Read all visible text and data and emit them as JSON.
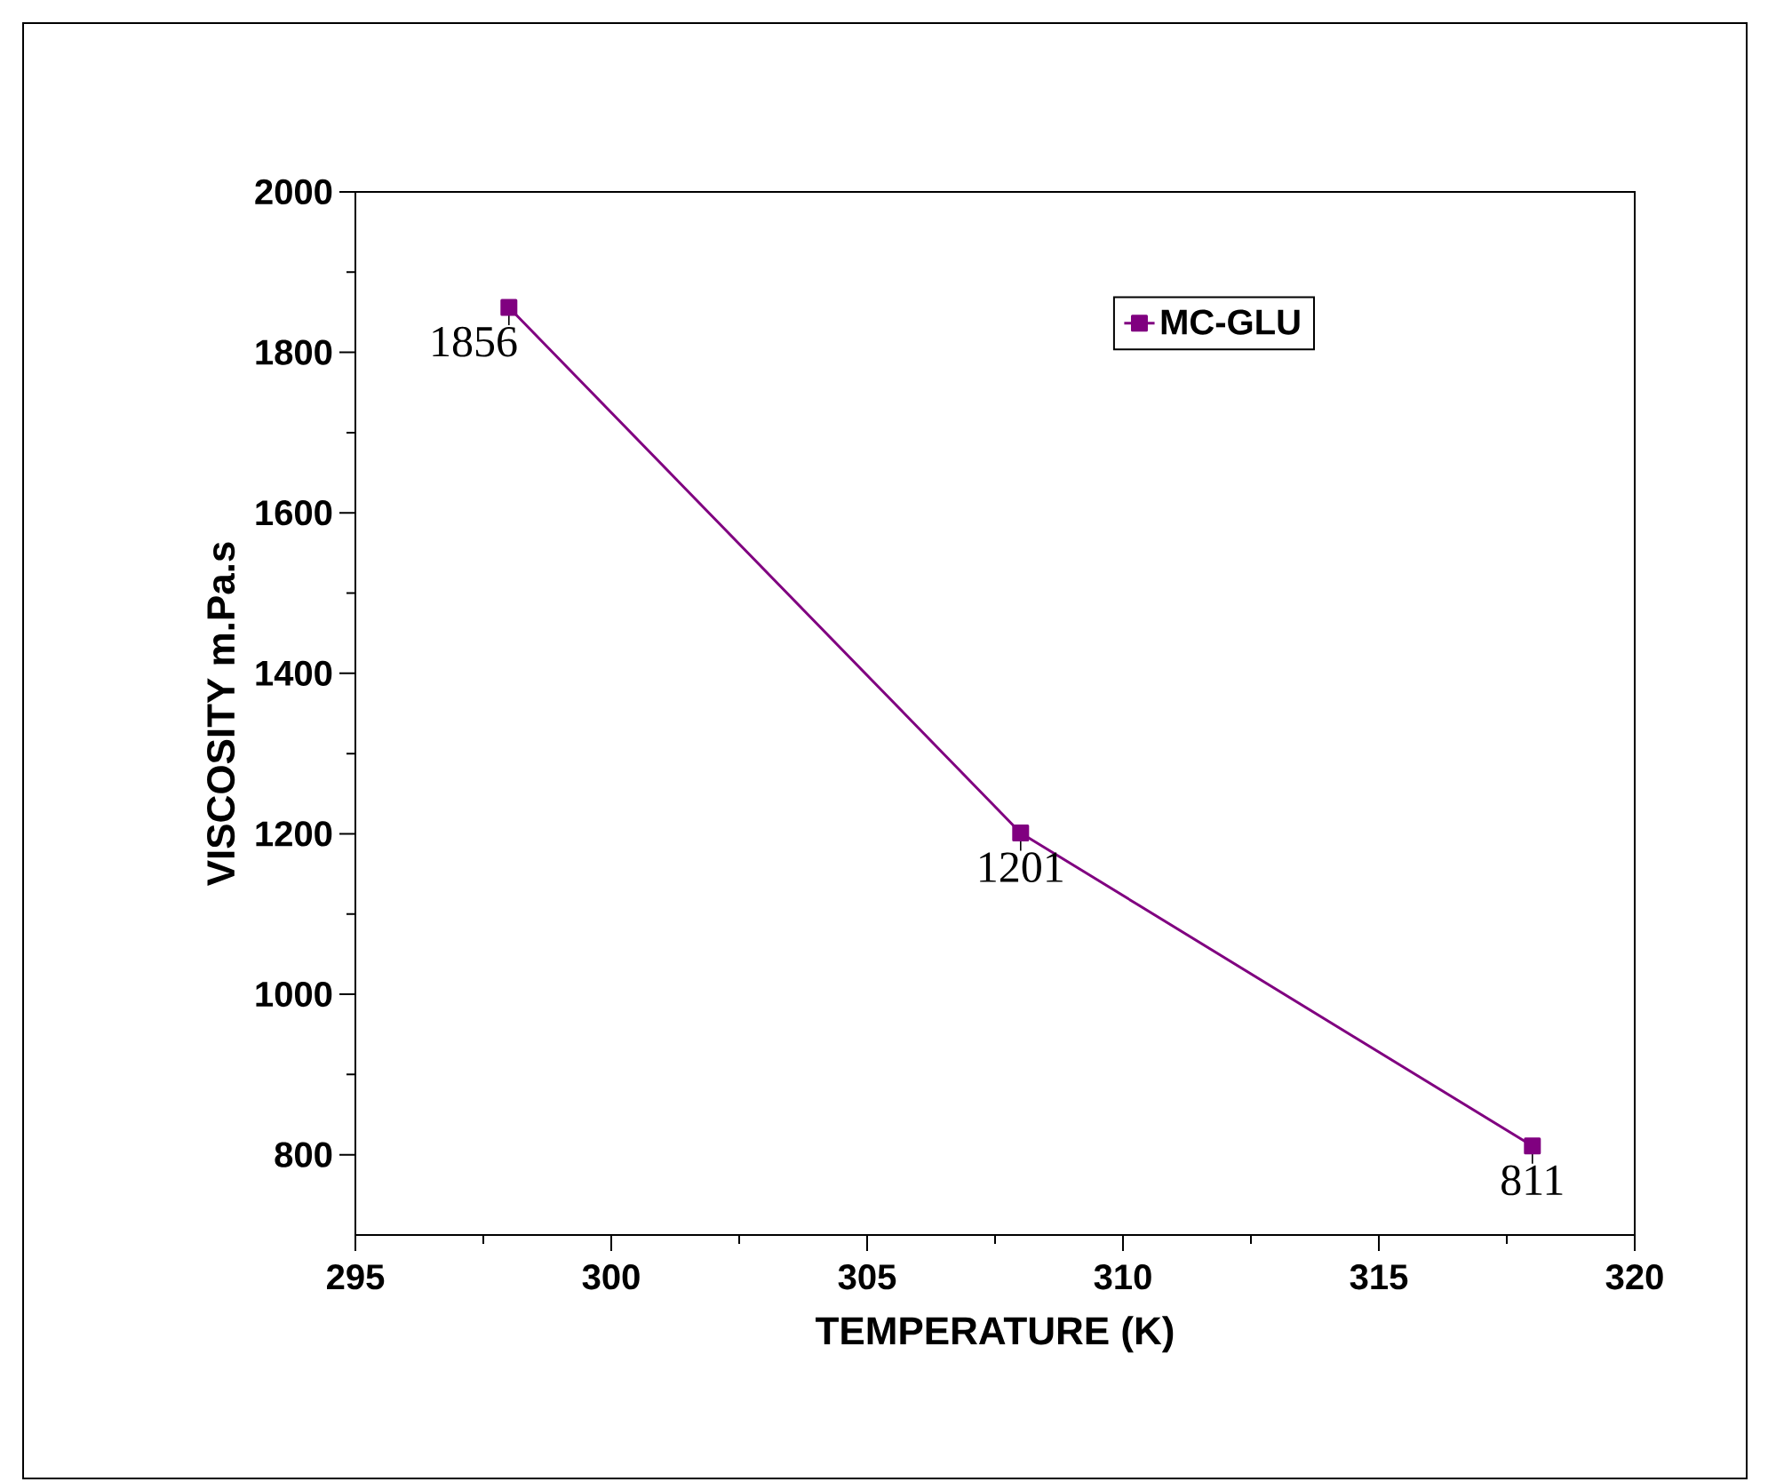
{
  "chart_data": {
    "type": "line",
    "xlabel": "TEMPERATURE (K)",
    "ylabel": "VISCOSITY m.Pa.s",
    "x": [
      298,
      308,
      318
    ],
    "series": [
      {
        "name": "MC-GLU",
        "color": "#800080",
        "values": [
          1856,
          1201,
          811
        ]
      }
    ],
    "xlim": [
      295,
      320
    ],
    "xticks": [
      295,
      300,
      305,
      310,
      315,
      320
    ],
    "ylim": [
      700,
      2000
    ],
    "yticks": [
      800,
      1000,
      1200,
      1400,
      1600,
      1800,
      2000
    ],
    "marker": "square",
    "line_style": "solid",
    "legend": "top right",
    "data_labels": true,
    "grid": false
  }
}
